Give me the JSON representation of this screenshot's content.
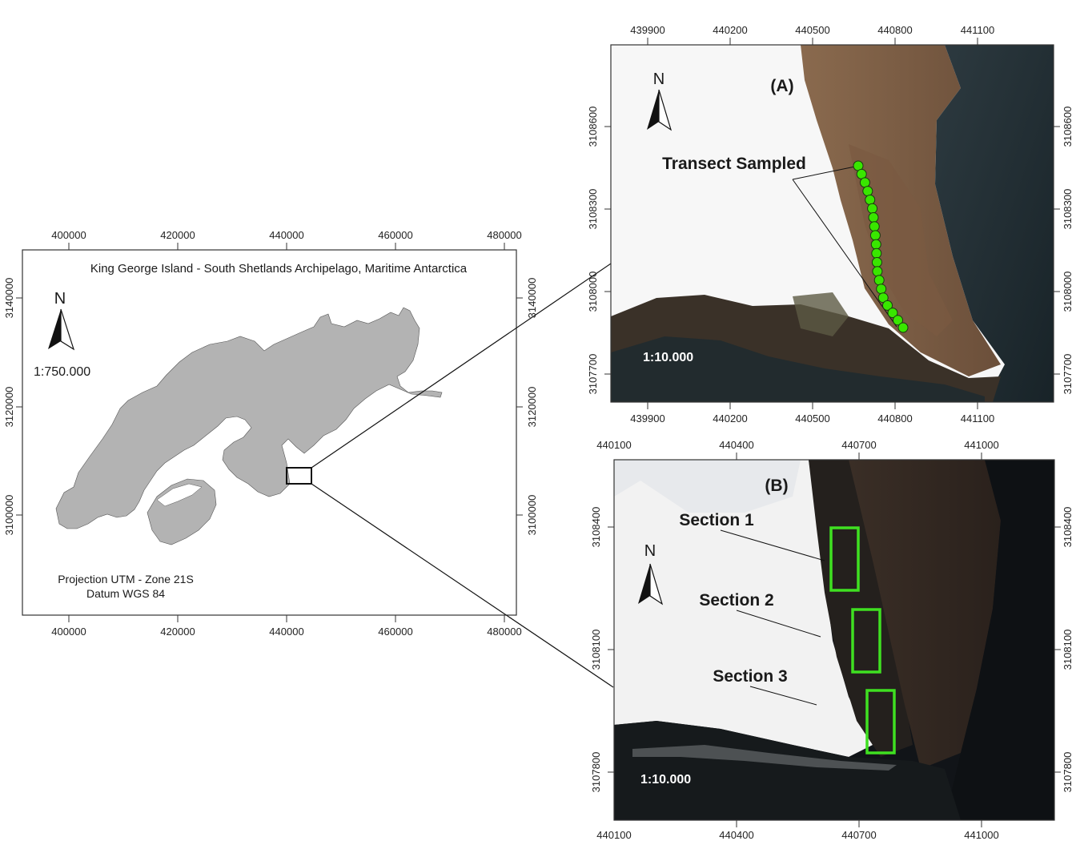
{
  "overview_map": {
    "title": "King George Island - South Shetlands Archipelago, Maritime Antarctica",
    "scale": "1:750.000",
    "north": "N",
    "projection": "Projection UTM - Zone 21S",
    "datum": "Datum WGS 84",
    "x_ticks": [
      "400000",
      "420000",
      "440000",
      "460000",
      "480000"
    ],
    "y_ticks": [
      "3140000",
      "3120000",
      "3100000"
    ],
    "colors": {
      "land": "#b3b3b3",
      "water": "#ffffff"
    }
  },
  "panel_a": {
    "label": "(A)",
    "north": "N",
    "scale": "1:10.000",
    "annotation": "Transect Sampled",
    "x_ticks": [
      "439900",
      "440200",
      "440500",
      "440800",
      "441100"
    ],
    "y_ticks": [
      "3108600",
      "3108300",
      "3108000",
      "3107700"
    ],
    "transect_points": 20,
    "colors": {
      "transect": "#39e600"
    }
  },
  "panel_b": {
    "label": "(B)",
    "north": "N",
    "scale": "1:10.000",
    "sections": [
      "Section 1",
      "Section 2",
      "Section 3"
    ],
    "x_ticks": [
      "440100",
      "440400",
      "440700",
      "441000"
    ],
    "y_ticks": [
      "3108400",
      "3108100",
      "3107800"
    ],
    "colors": {
      "section_box": "#3fe021"
    }
  }
}
